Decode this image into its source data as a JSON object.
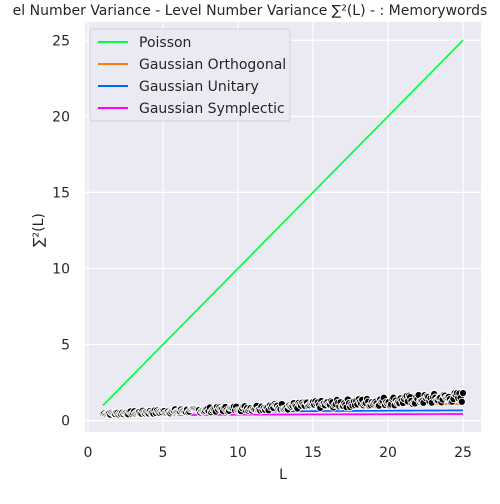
{
  "chart_data": {
    "type": "line",
    "title": "el Number Variance - Level Number Variance ∑²(L) - : Memorywords",
    "xlabel": "L",
    "ylabel": "∑²(L)",
    "xlim": [
      -0.2,
      26.2
    ],
    "ylim": [
      -0.75,
      26.2
    ],
    "xticks": [
      0,
      5,
      10,
      15,
      20,
      25
    ],
    "yticks": [
      0,
      5,
      10,
      15,
      20,
      25
    ],
    "grid": true,
    "legend_position": "top-left",
    "background": "#eaeaf2",
    "series": [
      {
        "name": "Poisson",
        "color": "#00ff41",
        "fn": "poisson",
        "x": [
          1,
          25
        ],
        "y": [
          1,
          25
        ]
      },
      {
        "name": "Gaussian Orthogonal",
        "color": "#ff7f0e",
        "fn": "goe",
        "x": [
          1,
          5,
          10,
          15,
          20,
          25
        ],
        "y": [
          0.42,
          0.71,
          0.85,
          0.93,
          0.99,
          1.03
        ]
      },
      {
        "name": "Gaussian Unitary",
        "color": "#0064ff",
        "fn": "gue",
        "x": [
          1,
          5,
          10,
          15,
          20,
          25
        ],
        "y": [
          0.35,
          0.49,
          0.56,
          0.6,
          0.63,
          0.65
        ]
      },
      {
        "name": "Gaussian Symplectic",
        "color": "#ff00ff",
        "fn": "gse",
        "x": [
          1,
          5,
          10,
          15,
          20,
          25
        ],
        "y": [
          0.28,
          0.35,
          0.39,
          0.41,
          0.42,
          0.44
        ]
      }
    ],
    "scatter": {
      "name": "empirical",
      "color": "#000000",
      "x_range": [
        1,
        25
      ],
      "y_start": 0.45,
      "y_end": 1.5,
      "spread": 0.55
    }
  }
}
